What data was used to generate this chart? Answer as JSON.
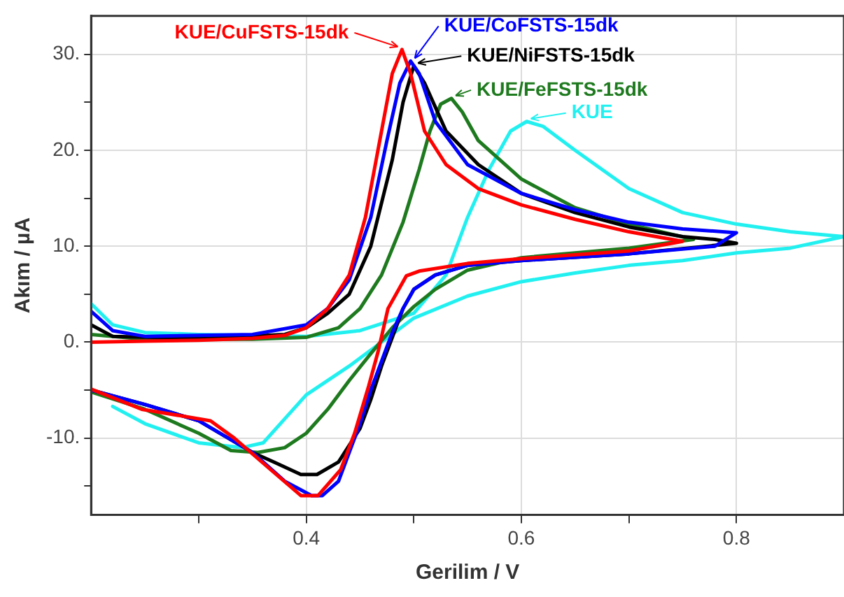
{
  "chart_data": {
    "type": "line",
    "xlabel": "Gerilim / V",
    "ylabel": "Akım / µA",
    "xlim": [
      0.2,
      0.9
    ],
    "ylim": [
      -18,
      34
    ],
    "xticks": [
      {
        "value": 0.3,
        "label": null
      },
      0.4,
      {
        "value": 0.5,
        "label": null
      },
      0.6,
      {
        "value": 0.7,
        "label": null
      },
      0.8
    ],
    "yticks": [
      {
        "value": -15,
        "label": null
      },
      {
        "value": -10,
        "label": "-10."
      },
      {
        "value": -5,
        "label": null
      },
      {
        "value": 0,
        "label": "0."
      },
      {
        "value": 5,
        "label": null
      },
      {
        "value": 10,
        "label": "10."
      },
      {
        "value": 15,
        "label": null
      },
      {
        "value": 20,
        "label": "20."
      },
      {
        "value": 25,
        "label": null
      },
      {
        "value": 30,
        "label": "30."
      }
    ],
    "grid": true,
    "legend": "top",
    "marker": "none",
    "line_style": "solid",
    "series": [
      {
        "name": "KUE/CuFSTS-15dk",
        "color": "#ff0000",
        "x": [
          0.2,
          0.25,
          0.3,
          0.35,
          0.38,
          0.4,
          0.42,
          0.44,
          0.455,
          0.47,
          0.48,
          0.489,
          0.497,
          0.51,
          0.53,
          0.56,
          0.6,
          0.65,
          0.7,
          0.75,
          0.7,
          0.6,
          0.55,
          0.505,
          0.493,
          0.476,
          0.467,
          0.458,
          0.445,
          0.432,
          0.411,
          0.395,
          0.367,
          0.333,
          0.311,
          0.247,
          0.2
        ],
        "values": [
          0,
          0.1,
          0.2,
          0.4,
          0.7,
          1.5,
          3.5,
          7,
          13,
          22,
          28,
          30.5,
          28,
          22,
          18.5,
          16,
          14.3,
          12.8,
          11.5,
          10.5,
          9.5,
          8.7,
          8.2,
          7.4,
          6.9,
          3.5,
          -0.9,
          -4.6,
          -9.5,
          -13.3,
          -16,
          -16,
          -13.3,
          -10,
          -8.2,
          -7,
          -4.9
        ]
      },
      {
        "name": "KUE/CoFSTS-15dk",
        "color": "#0000ff",
        "x": [
          0.2,
          0.22,
          0.25,
          0.35,
          0.4,
          0.42,
          0.44,
          0.46,
          0.475,
          0.487,
          0.497,
          0.505,
          0.52,
          0.55,
          0.6,
          0.65,
          0.7,
          0.75,
          0.8,
          0.78,
          0.7,
          0.6,
          0.55,
          0.52,
          0.5,
          0.49,
          0.48,
          0.47,
          0.46,
          0.45,
          0.44,
          0.43,
          0.415,
          0.405,
          0.38,
          0.35,
          0.3,
          0.25,
          0.2
        ],
        "values": [
          3.2,
          1.2,
          0.6,
          0.8,
          1.8,
          3.5,
          6.5,
          13,
          21,
          27,
          29.3,
          28,
          23,
          18.5,
          15.5,
          13.8,
          12.5,
          11.8,
          11.4,
          10,
          9.2,
          8.5,
          8,
          7,
          5.5,
          3.5,
          1,
          -2,
          -5,
          -8.5,
          -11.5,
          -14.5,
          -16,
          -16,
          -14.5,
          -11.5,
          -8.2,
          -6.5,
          -5
        ]
      },
      {
        "name": "KUE/NiFSTS-15dk",
        "color": "#000000",
        "x": [
          0.2,
          0.22,
          0.3,
          0.38,
          0.4,
          0.42,
          0.44,
          0.46,
          0.48,
          0.49,
          0.5,
          0.51,
          0.53,
          0.56,
          0.6,
          0.65,
          0.7,
          0.75,
          0.78,
          0.8,
          0.7,
          0.6,
          0.55,
          0.52,
          0.5,
          0.49,
          0.48,
          0.47,
          0.46,
          0.45,
          0.43,
          0.41,
          0.395,
          0.37,
          0.35,
          0.3,
          0.25,
          0.2
        ],
        "values": [
          1.8,
          0.6,
          0.4,
          0.8,
          1.5,
          3,
          5,
          10,
          19,
          25,
          28.8,
          27,
          22,
          18.5,
          15.5,
          13.5,
          12,
          11,
          10.7,
          10.3,
          9.2,
          8.5,
          8,
          7,
          5.5,
          3.5,
          0.5,
          -2.5,
          -6,
          -9,
          -12.5,
          -13.8,
          -13.8,
          -12.5,
          -11.5,
          -8.2,
          -6.5,
          -5
        ]
      },
      {
        "name": "KUE/FeFSTS-15dk",
        "color": "#1e7a1e",
        "x": [
          0.2,
          0.25,
          0.35,
          0.4,
          0.43,
          0.45,
          0.47,
          0.49,
          0.505,
          0.515,
          0.525,
          0.535,
          0.545,
          0.56,
          0.6,
          0.65,
          0.7,
          0.76,
          0.7,
          0.6,
          0.55,
          0.52,
          0.5,
          0.48,
          0.46,
          0.44,
          0.42,
          0.4,
          0.38,
          0.355,
          0.33,
          0.3,
          0.25,
          0.2
        ],
        "values": [
          0.8,
          0.3,
          0.3,
          0.5,
          1.5,
          3.5,
          7,
          12.5,
          18,
          22,
          24.8,
          25.4,
          24,
          21,
          17,
          14,
          12.3,
          10.7,
          9.8,
          8.8,
          7.5,
          5.5,
          3.7,
          1.5,
          -1.2,
          -4,
          -7,
          -9.5,
          -11,
          -11.5,
          -11.3,
          -9.5,
          -7,
          -5.2
        ]
      },
      {
        "name": "KUE",
        "color": "#22f0f0",
        "x": [
          0.2,
          0.22,
          0.25,
          0.3,
          0.35,
          0.4,
          0.45,
          0.5,
          0.53,
          0.55,
          0.57,
          0.59,
          0.605,
          0.62,
          0.65,
          0.7,
          0.75,
          0.8,
          0.85,
          0.9,
          0.85,
          0.8,
          0.75,
          0.7,
          0.65,
          0.6,
          0.55,
          0.5,
          0.47,
          0.44,
          0.4,
          0.38,
          0.36,
          0.34,
          0.3,
          0.25,
          0.22
        ],
        "values": [
          4,
          1.8,
          1,
          0.8,
          0.7,
          0.6,
          1.2,
          3,
          7,
          13,
          18,
          22,
          23,
          22.5,
          20,
          16,
          13.5,
          12.3,
          11.5,
          11,
          9.8,
          9.3,
          8.5,
          8,
          7.2,
          6.3,
          4.8,
          2.5,
          0,
          -2.5,
          -5.5,
          -8,
          -10.5,
          -11,
          -10.5,
          -8.5,
          -6.7
        ]
      }
    ]
  }
}
